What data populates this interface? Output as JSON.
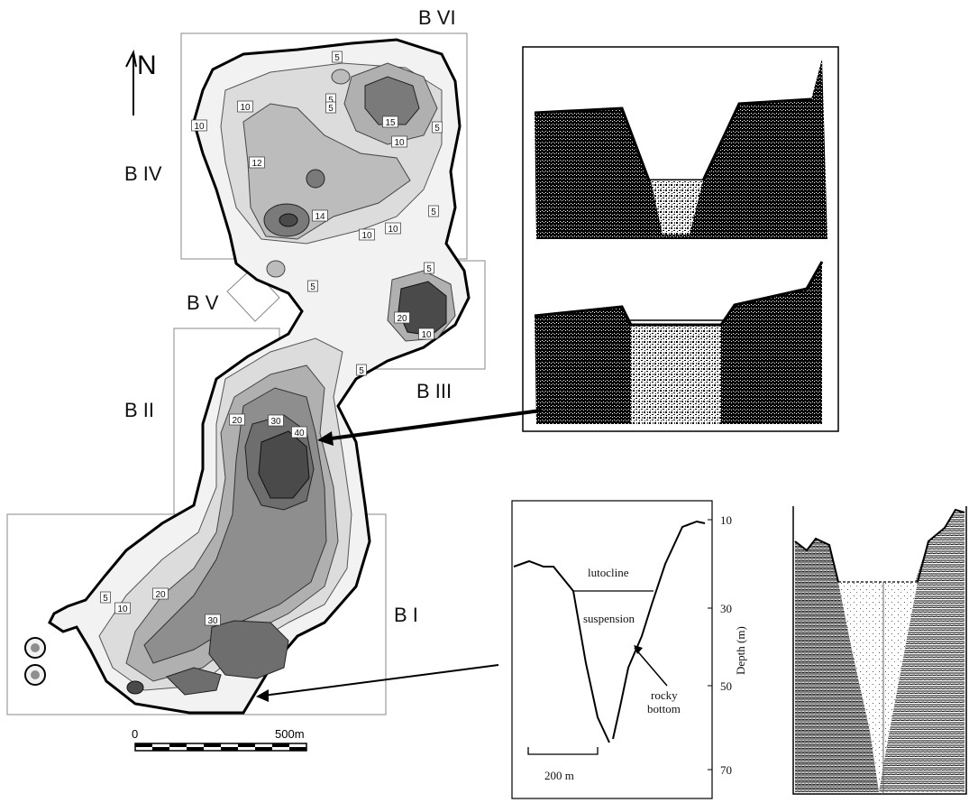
{
  "map": {
    "north_label": "N",
    "basins": [
      "B VI",
      "B IV",
      "B V",
      "B II",
      "B III",
      "B I"
    ],
    "depth_labels": [
      "5",
      "5",
      "5",
      "10",
      "10",
      "15",
      "10",
      "5",
      "12",
      "14",
      "5",
      "10",
      "10",
      "5",
      "5",
      "20",
      "10",
      "5",
      "20",
      "30",
      "40",
      "5",
      "10",
      "20",
      "30"
    ],
    "scale_bar": {
      "start_label": "0",
      "end_label": "500m"
    },
    "colors": {
      "water_shallow": "#f0f0f0",
      "depth_5": "#d8d8d8",
      "depth_10": "#b8b8b8",
      "depth_20": "#8e8e8e",
      "depth_30": "#6e6e6e",
      "depth_40": "#4a4a4a",
      "shore": "#000000"
    }
  },
  "profile": {
    "depth_axis_label": "Depth (m)",
    "depth_ticks": [
      "10",
      "30",
      "50",
      "70"
    ],
    "lutocline_label": "lutocline",
    "suspension_label": "suspension",
    "rocky_bottom_label_line1": "rocky",
    "rocky_bottom_label_line2": "bottom",
    "scale_label": "200 m"
  }
}
